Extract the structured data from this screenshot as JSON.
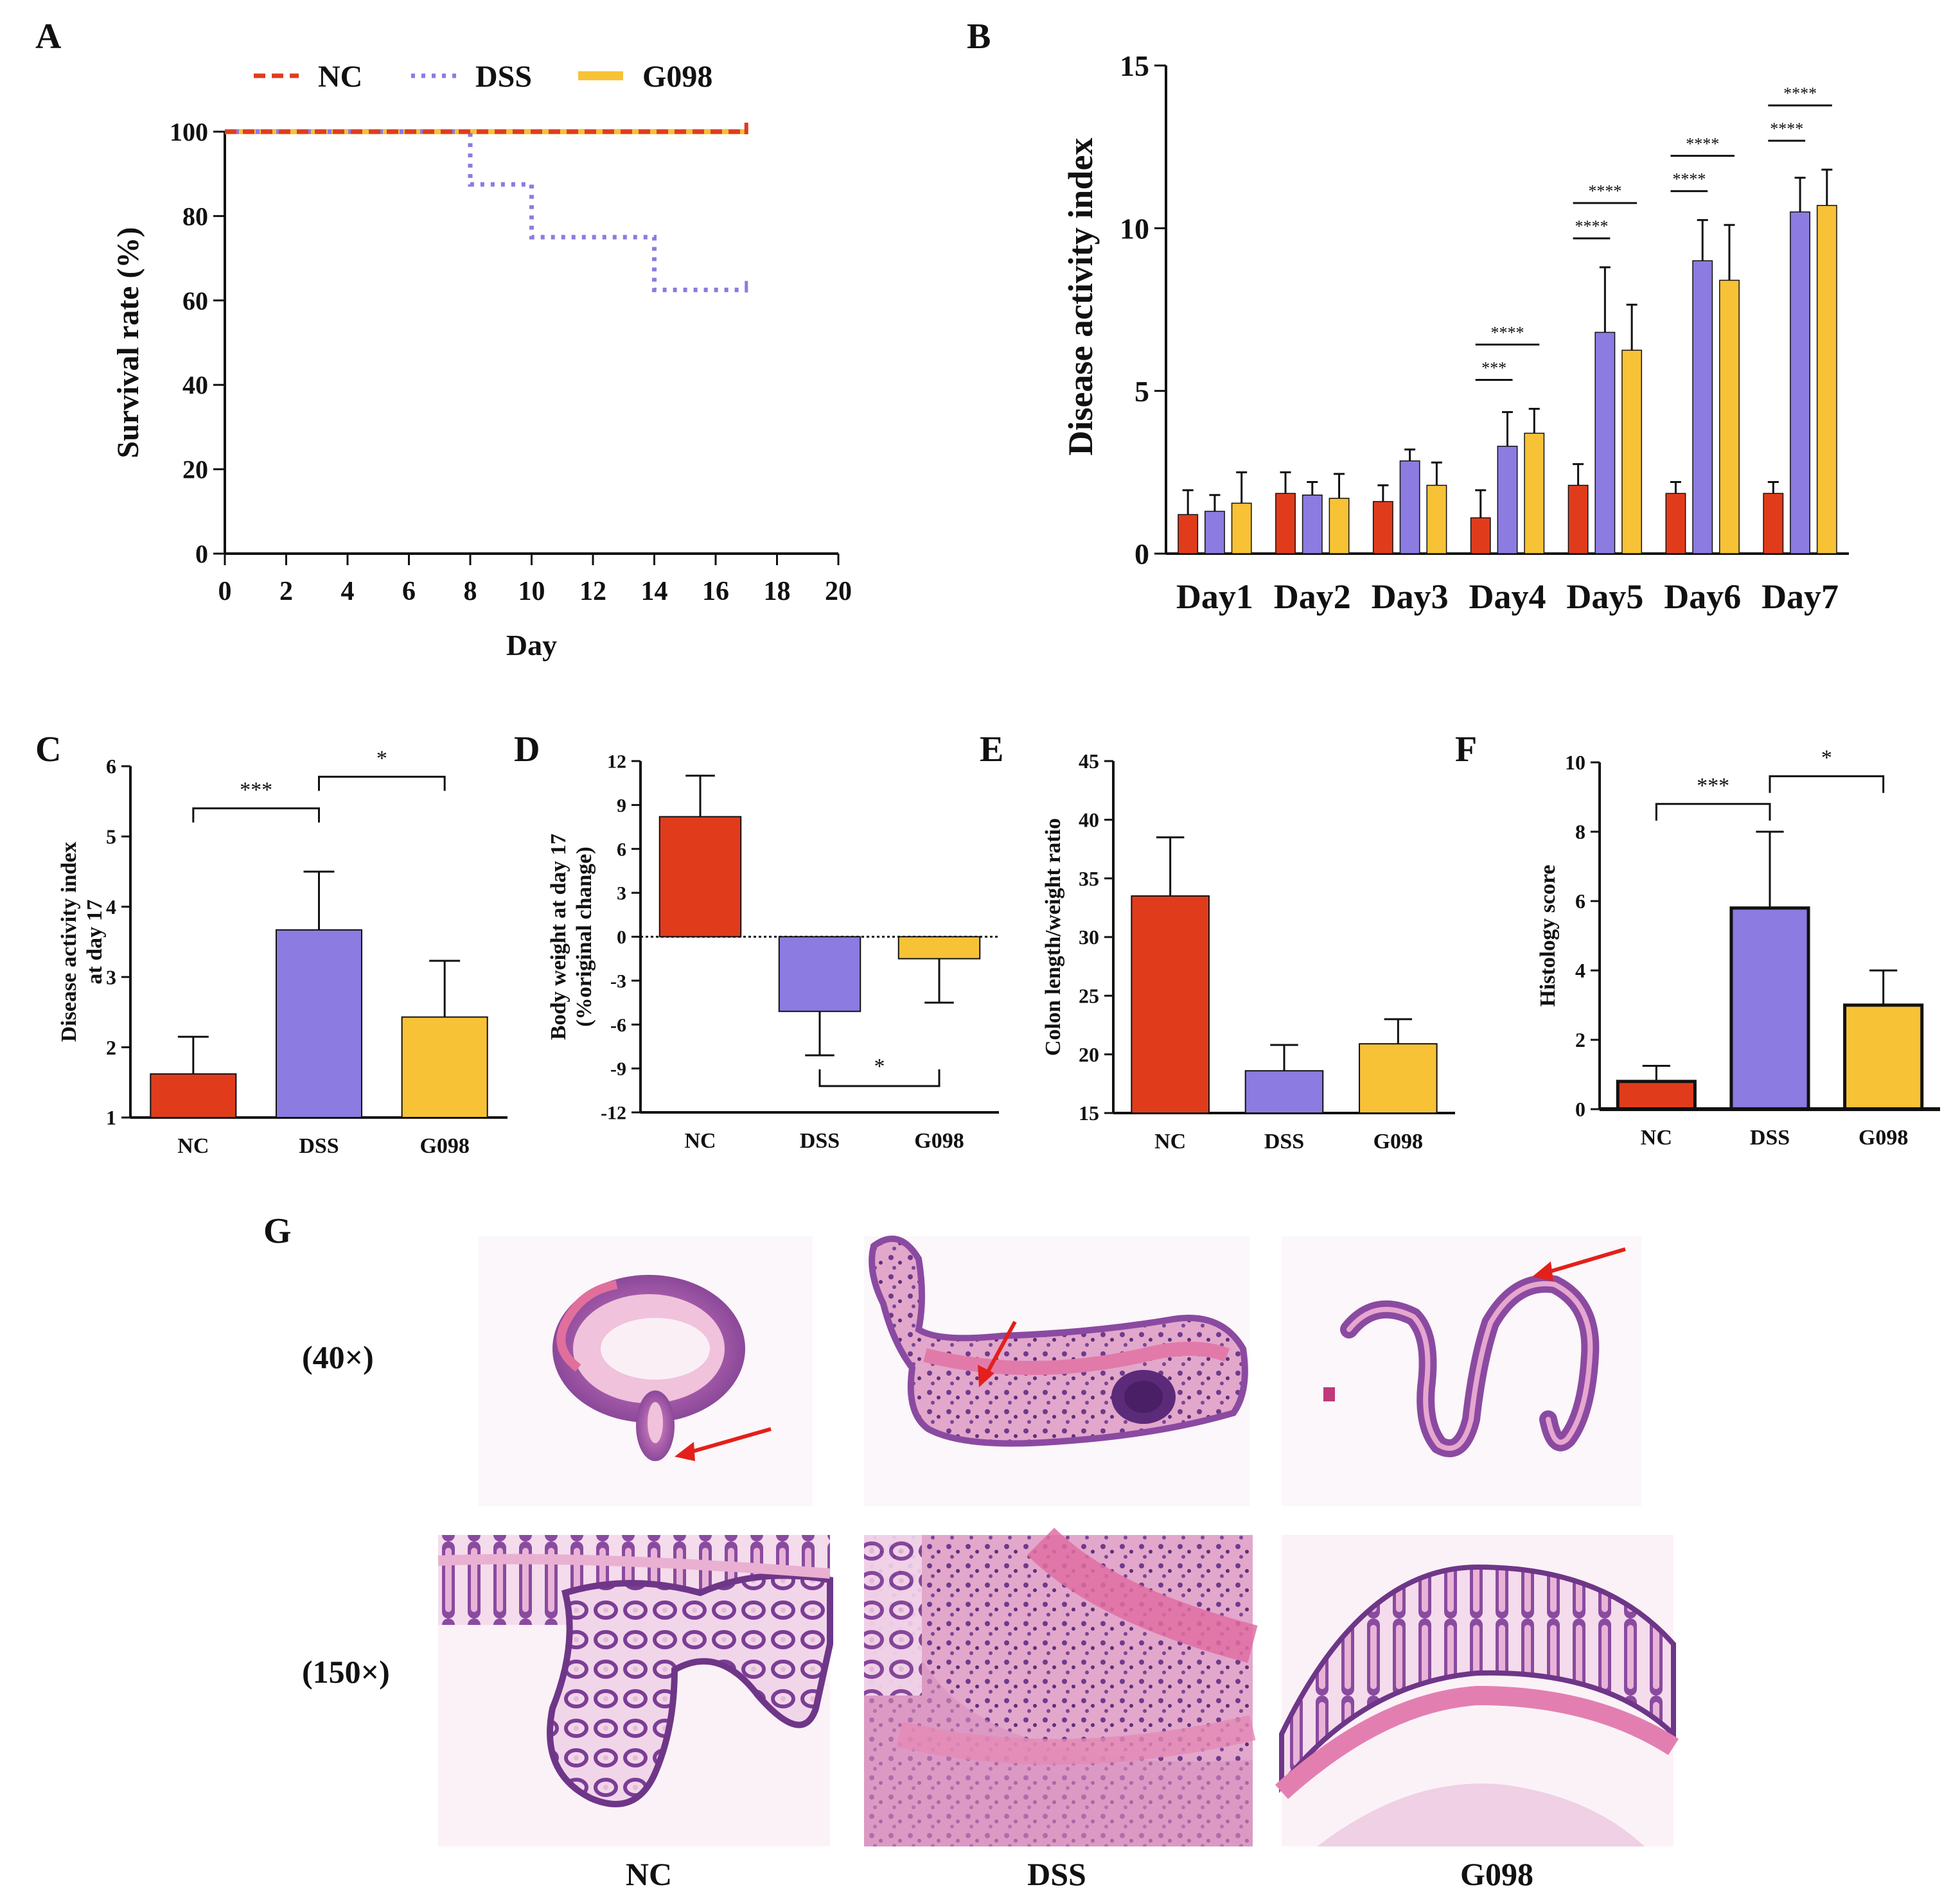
{
  "colors": {
    "NC": "#e03c1c",
    "DSS": "#8c7be0",
    "G098": "#f7c236",
    "axis": "#111111"
  },
  "panels": {
    "A": "A",
    "B": "B",
    "C": "C",
    "D": "D",
    "E": "E",
    "F": "F",
    "G": "G"
  },
  "chart_data": [
    {
      "id": "A",
      "type": "line",
      "title": "",
      "xlabel": "Day",
      "ylabel": "Survival rate (%)",
      "xlim": [
        0,
        20
      ],
      "ylim": [
        0,
        100
      ],
      "xticks": [
        "0",
        "2",
        "4",
        "6",
        "8",
        "10",
        "12",
        "14",
        "16",
        "18",
        "20"
      ],
      "yticks": [
        "0",
        "20",
        "40",
        "60",
        "80",
        "100"
      ],
      "legend": [
        "NC",
        "DSS",
        "G098"
      ],
      "series": [
        {
          "name": "NC",
          "style": "dashed",
          "x": [
            0,
            17
          ],
          "y": [
            100,
            100
          ]
        },
        {
          "name": "DSS",
          "style": "dotted",
          "x": [
            0,
            8,
            8,
            10,
            10,
            14,
            14,
            17
          ],
          "y": [
            100,
            100,
            87.5,
            87.5,
            75,
            75,
            62.5,
            62.5
          ]
        },
        {
          "name": "G098",
          "style": "solid",
          "x": [
            0,
            17
          ],
          "y": [
            100,
            100
          ]
        }
      ]
    },
    {
      "id": "B",
      "type": "bar",
      "ylabel": "Disease activity index",
      "ylim": [
        0,
        15
      ],
      "yticks": [
        "0",
        "5",
        "10",
        "15"
      ],
      "categories": [
        "Day1",
        "Day2",
        "Day3",
        "Day4",
        "Day5",
        "Day6",
        "Day7"
      ],
      "series": [
        {
          "name": "NC",
          "values": [
            1.2,
            1.85,
            1.6,
            1.1,
            2.1,
            1.85,
            1.85
          ],
          "errors": [
            0.75,
            0.65,
            0.5,
            0.85,
            0.65,
            0.35,
            0.35
          ]
        },
        {
          "name": "DSS",
          "values": [
            1.3,
            1.8,
            2.85,
            3.3,
            6.8,
            9.0,
            10.5
          ],
          "errors": [
            0.5,
            0.4,
            0.35,
            1.05,
            2.0,
            1.25,
            1.05
          ]
        },
        {
          "name": "G098",
          "values": [
            1.55,
            1.7,
            2.1,
            3.7,
            6.25,
            8.4,
            10.7
          ],
          "errors": [
            0.95,
            0.75,
            0.7,
            0.75,
            1.4,
            1.7,
            1.1
          ]
        }
      ],
      "annotations": [
        {
          "category": "Day4",
          "text": "***",
          "from": "NC",
          "to": "DSS"
        },
        {
          "category": "Day4",
          "text": "****",
          "from": "NC",
          "to": "G098"
        },
        {
          "category": "Day5",
          "text": "****",
          "from": "NC",
          "to": "DSS"
        },
        {
          "category": "Day5",
          "text": "****",
          "from": "NC",
          "to": "G098"
        },
        {
          "category": "Day6",
          "text": "****",
          "from": "NC",
          "to": "DSS"
        },
        {
          "category": "Day6",
          "text": "****",
          "from": "NC",
          "to": "G098"
        },
        {
          "category": "Day7",
          "text": "****",
          "from": "NC",
          "to": "DSS"
        },
        {
          "category": "Day7",
          "text": "****",
          "from": "NC",
          "to": "G098"
        }
      ]
    },
    {
      "id": "C",
      "type": "bar",
      "ylabel": [
        "Disease activity index",
        "at day 17"
      ],
      "ylim": [
        1,
        6
      ],
      "yticks": [
        "1",
        "2",
        "3",
        "4",
        "5",
        "6"
      ],
      "categories": [
        "NC",
        "DSS",
        "G098"
      ],
      "values": [
        1.62,
        3.67,
        2.43
      ],
      "errors": [
        0.53,
        0.83,
        0.8
      ],
      "annotations": [
        {
          "from": "NC",
          "to": "DSS",
          "text": "***",
          "y": 5.4
        },
        {
          "from": "DSS",
          "to": "G098",
          "text": "*",
          "y": 5.85
        }
      ]
    },
    {
      "id": "D",
      "type": "bar",
      "ylabel": [
        "Body weight at day 17",
        "(%original change)"
      ],
      "ylim": [
        -12,
        12
      ],
      "yticks": [
        "-12",
        "-9",
        "-6",
        "-3",
        "0",
        "3",
        "6",
        "9",
        "12"
      ],
      "categories": [
        "NC",
        "DSS",
        "G098"
      ],
      "values": [
        8.2,
        -5.1,
        -1.5
      ],
      "errors": [
        2.8,
        3.0,
        3.0
      ],
      "annotations": [
        {
          "from": "DSS",
          "to": "G098",
          "text": "*",
          "y": -10.2
        }
      ]
    },
    {
      "id": "E",
      "type": "bar",
      "ylabel": "Colon length/weight ratio",
      "ylim": [
        15,
        45
      ],
      "yticks": [
        "15",
        "20",
        "25",
        "30",
        "35",
        "40",
        "45"
      ],
      "categories": [
        "NC",
        "DSS",
        "G098"
      ],
      "values": [
        33.5,
        18.6,
        20.9
      ],
      "errors": [
        5.0,
        2.2,
        2.1
      ]
    },
    {
      "id": "F",
      "type": "bar",
      "ylabel": "Histology score",
      "ylim": [
        0,
        10
      ],
      "yticks": [
        "0",
        "2",
        "4",
        "6",
        "8",
        "10"
      ],
      "categories": [
        "NC",
        "DSS",
        "G098"
      ],
      "values": [
        0.8,
        5.8,
        3.0
      ],
      "errors": [
        0.45,
        2.2,
        1.0
      ],
      "annotations": [
        {
          "from": "NC",
          "to": "DSS",
          "text": "***",
          "y": 8.8
        },
        {
          "from": "DSS",
          "to": "G098",
          "text": "*",
          "y": 9.6
        }
      ]
    }
  ],
  "histology": {
    "magnifications": [
      "(40×)",
      "(150×)"
    ],
    "groups": [
      "NC",
      "DSS",
      "G098"
    ]
  }
}
